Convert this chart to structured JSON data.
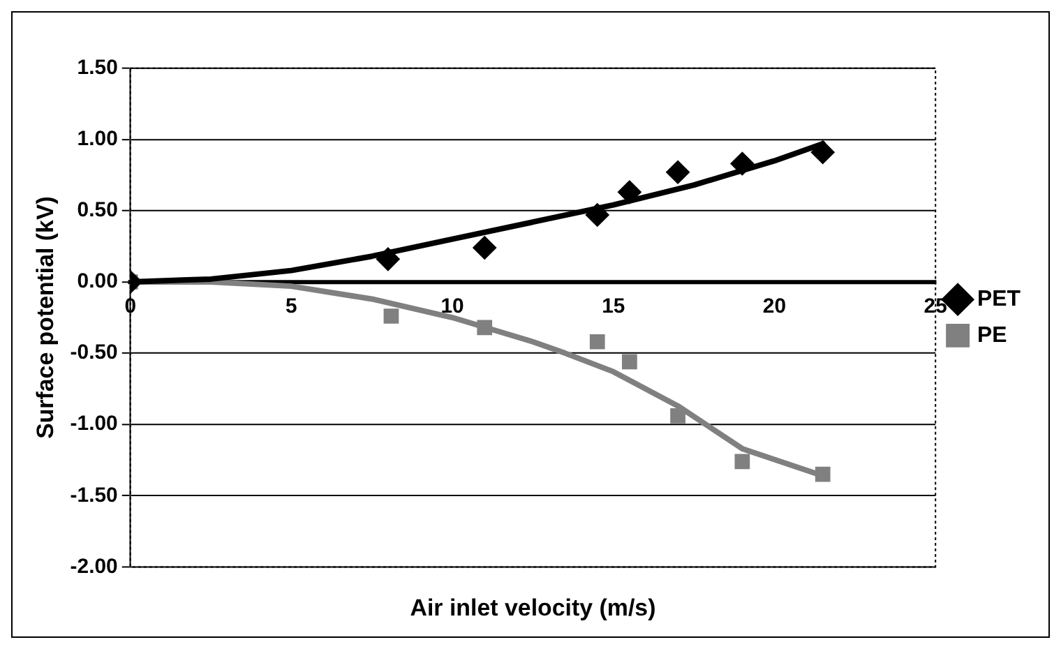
{
  "chart_data": {
    "type": "scatter",
    "xlabel": "Air inlet velocity (m/s)",
    "ylabel": "Surface potential (kV)",
    "xlim": [
      0,
      25
    ],
    "xticks": [
      0,
      5,
      10,
      15,
      20,
      25
    ],
    "ylim": [
      -2,
      1.5
    ],
    "yticks": [
      {
        "value": -2,
        "label": "-2.00"
      },
      {
        "value": -1.5,
        "label": "-1.50"
      },
      {
        "value": -1,
        "label": "-1.00"
      },
      {
        "value": -0.5,
        "label": "-0.50"
      },
      {
        "value": 0,
        "label": "0.00"
      },
      {
        "value": 0.5,
        "label": "0.50"
      },
      {
        "value": 1,
        "label": "1.00"
      },
      {
        "value": 1.5,
        "label": "1.50"
      }
    ],
    "grid": "y",
    "legend": "right",
    "series": [
      {
        "name": "PET",
        "color": "#000000",
        "marker": "diamond",
        "x": [
          0,
          8,
          11,
          14.5,
          15.5,
          17,
          19,
          21.5
        ],
        "values": [
          0,
          0.16,
          0.24,
          0.47,
          0.63,
          0.77,
          0.83,
          0.91
        ]
      },
      {
        "name": "PE",
        "color": "#808080",
        "marker": "square",
        "x": [
          0,
          8.1,
          11,
          14.5,
          15.5,
          17,
          19,
          21.5
        ],
        "values": [
          0,
          -0.24,
          -0.32,
          -0.42,
          -0.56,
          -0.94,
          -1.26,
          -1.35
        ]
      },
      {
        "type": "line",
        "color": "#000000",
        "marker": "none",
        "x": [
          0,
          2.5,
          5,
          7.5,
          10,
          12.5,
          15,
          17.5,
          20,
          21.5
        ],
        "values": [
          0,
          0.02,
          0.08,
          0.18,
          0.3,
          0.42,
          0.54,
          0.68,
          0.85,
          0.97
        ]
      },
      {
        "type": "line",
        "color": "#808080",
        "marker": "none",
        "x": [
          0,
          2.5,
          5,
          7.5,
          10,
          12.5,
          13.5,
          15,
          17,
          19,
          21.5
        ],
        "values": [
          0,
          0,
          -0.03,
          -0.12,
          -0.25,
          -0.42,
          -0.5,
          -0.63,
          -0.87,
          -1.17,
          -1.36
        ]
      }
    ]
  }
}
